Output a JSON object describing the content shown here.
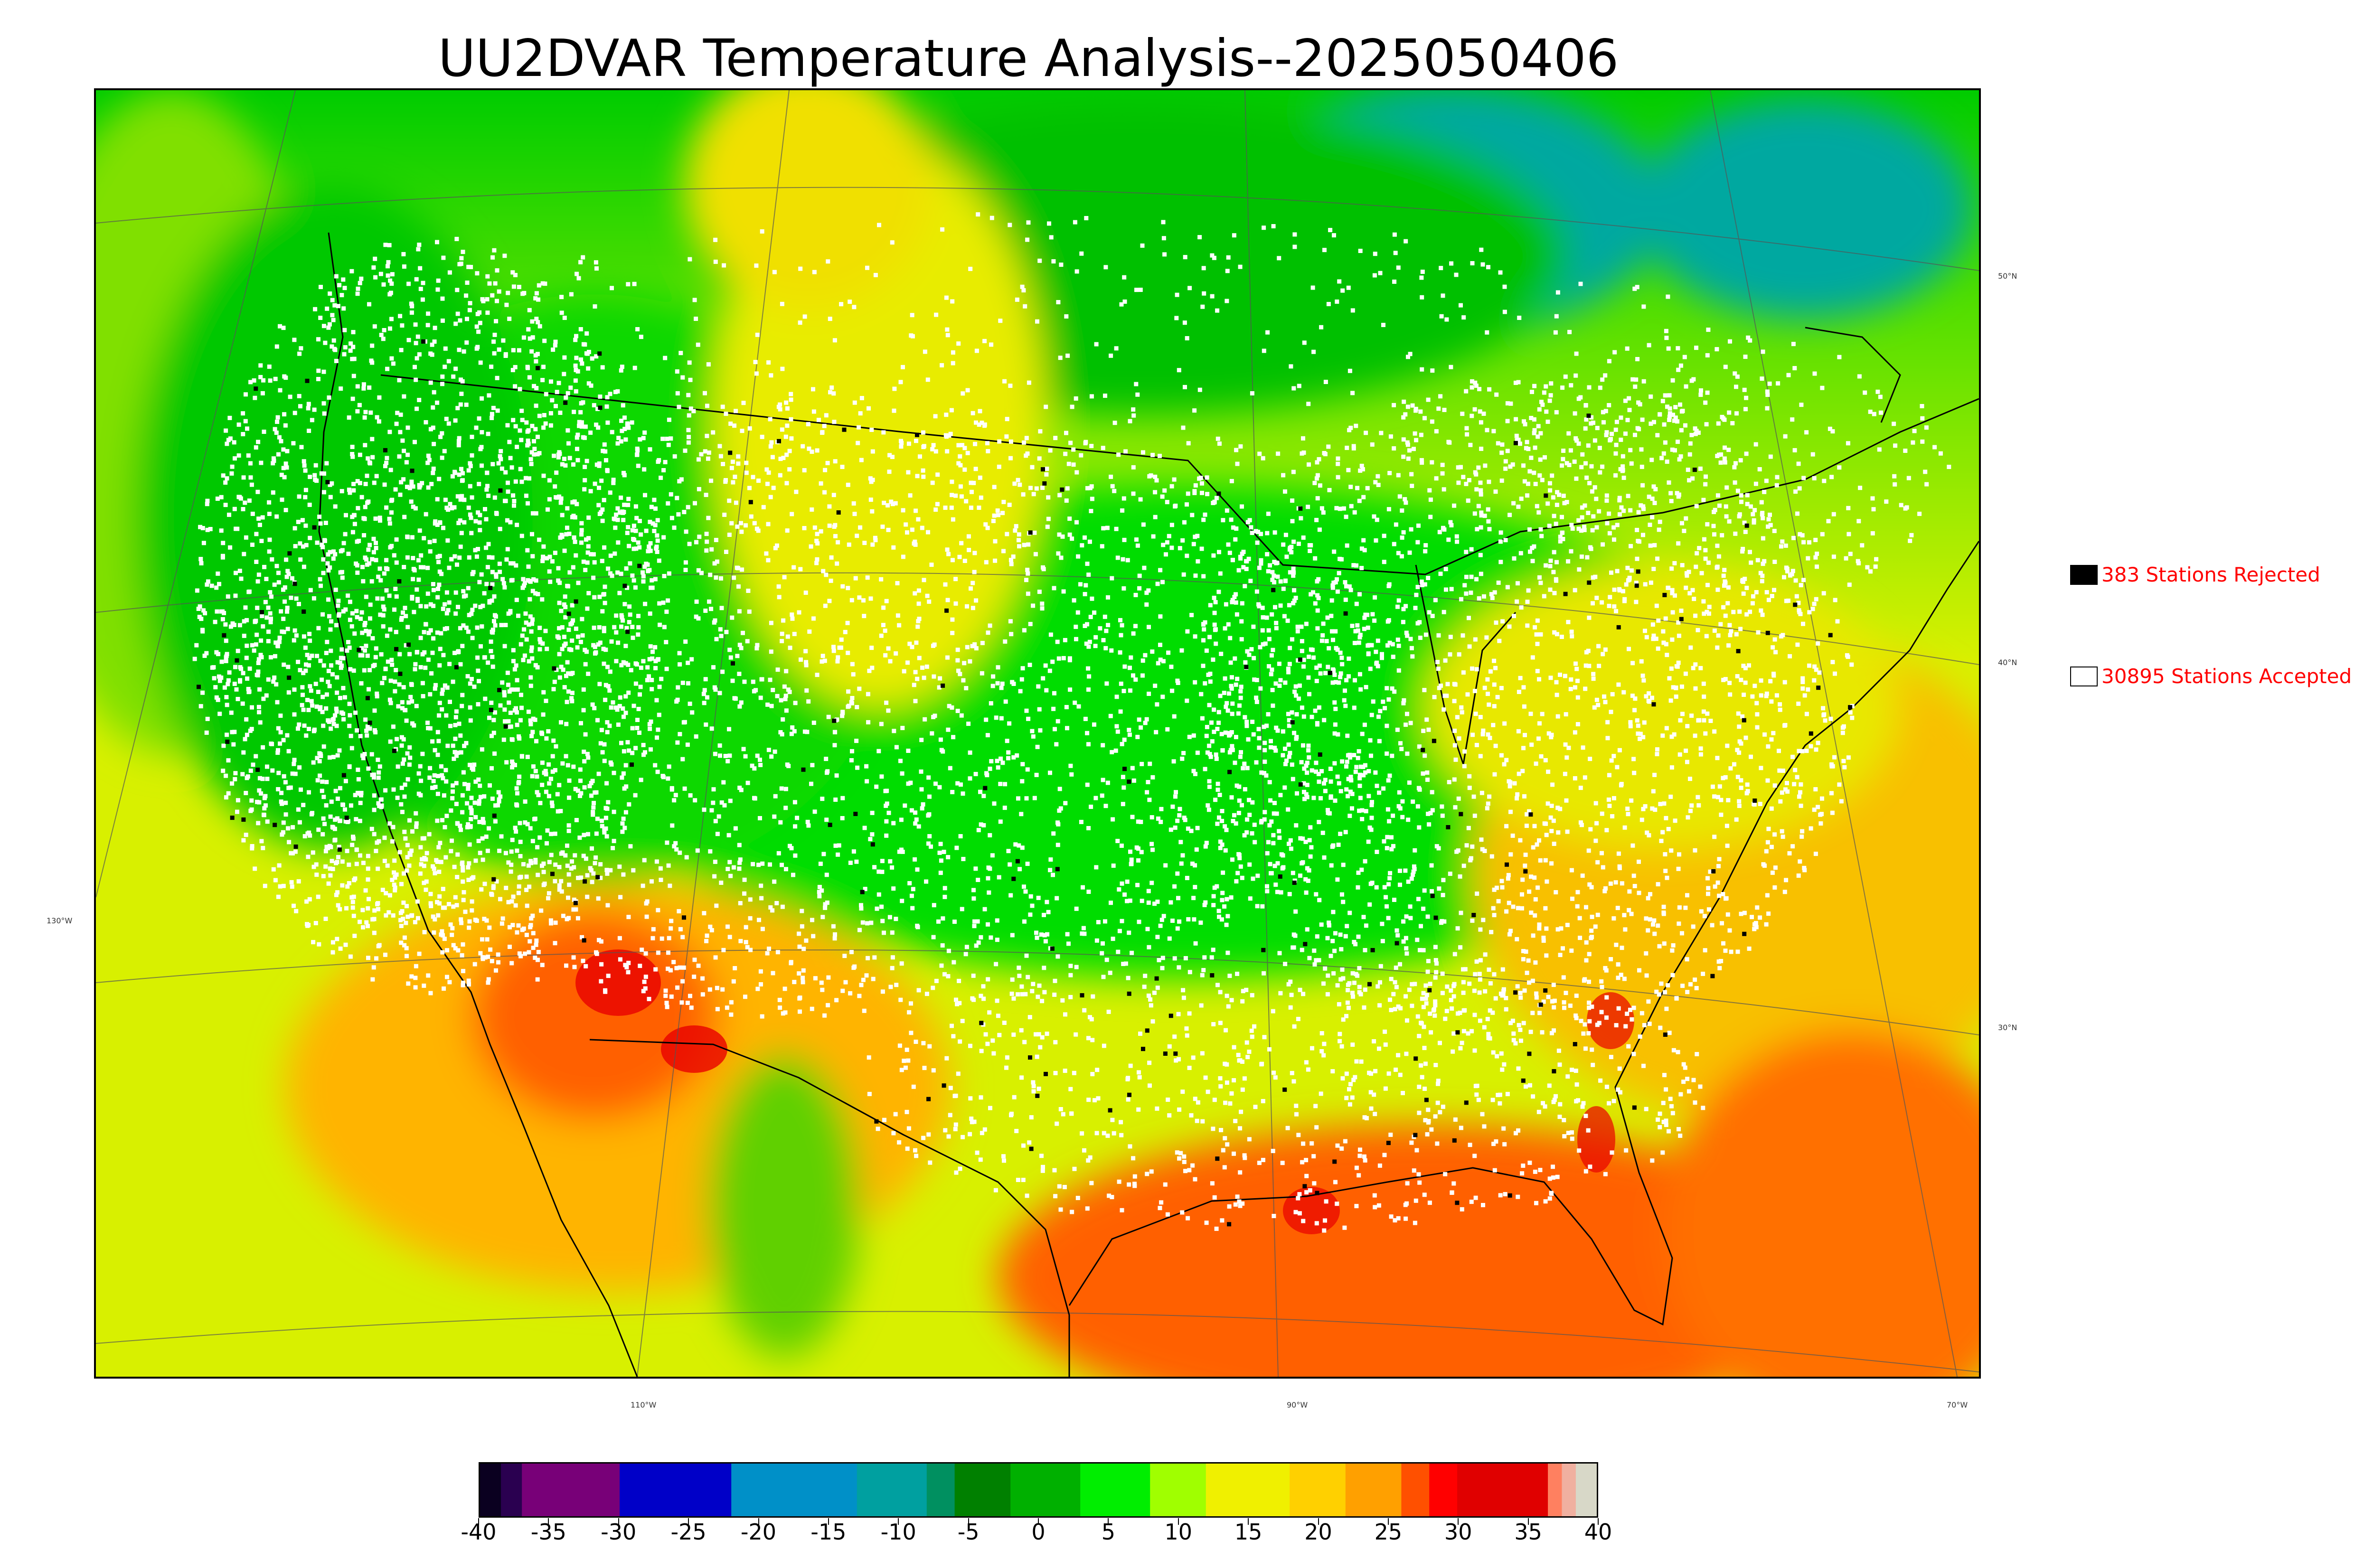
{
  "title": "UU2DVAR Temperature Analysis--2025050406",
  "map": {
    "latitude_labels": [
      "50°N",
      "40°N",
      "30°N"
    ],
    "longitude_labels": [
      "130°W",
      "110°W",
      "90°W",
      "70°W"
    ]
  },
  "legend": {
    "rejected": {
      "count_label": "383 Stations Rejected",
      "count": 383,
      "color": "#000000"
    },
    "accepted": {
      "count_label": "30895 Stations Accepted",
      "count": 30895,
      "color": "#ffffff"
    },
    "text_color": "#ff0000"
  },
  "colorbar": {
    "min": -40,
    "max": 40,
    "tick_labels": [
      "-40",
      "-35",
      "-30",
      "-25",
      "-20",
      "-15",
      "-10",
      "-5",
      "0",
      "5",
      "10",
      "15",
      "20",
      "25",
      "30",
      "35",
      "40"
    ],
    "segments": [
      {
        "from": -40,
        "to": -38.5,
        "color": "#0a0020"
      },
      {
        "from": -38.5,
        "to": -37,
        "color": "#2a0050"
      },
      {
        "from": -37,
        "to": -30,
        "color": "#780078"
      },
      {
        "from": -30,
        "to": -22,
        "color": "#0000c8"
      },
      {
        "from": -22,
        "to": -13,
        "color": "#0090c8"
      },
      {
        "from": -13,
        "to": -8,
        "color": "#00a0a0"
      },
      {
        "from": -8,
        "to": -6,
        "color": "#009060"
      },
      {
        "from": -6,
        "to": -2,
        "color": "#008000"
      },
      {
        "from": -2,
        "to": 3,
        "color": "#00b000"
      },
      {
        "from": 3,
        "to": 8,
        "color": "#00ee00"
      },
      {
        "from": 8,
        "to": 12,
        "color": "#a0ff00"
      },
      {
        "from": 12,
        "to": 18,
        "color": "#f0f000"
      },
      {
        "from": 18,
        "to": 22,
        "color": "#ffd000"
      },
      {
        "from": 22,
        "to": 26,
        "color": "#ffa000"
      },
      {
        "from": 26,
        "to": 28,
        "color": "#ff5000"
      },
      {
        "from": 28,
        "to": 30,
        "color": "#ff0000"
      },
      {
        "from": 30,
        "to": 36.5,
        "color": "#e00000"
      },
      {
        "from": 36.5,
        "to": 37.5,
        "color": "#ff8060"
      },
      {
        "from": 37.5,
        "to": 38.5,
        "color": "#f0b0a0"
      },
      {
        "from": 38.5,
        "to": 40,
        "color": "#d8d8c8"
      }
    ]
  }
}
